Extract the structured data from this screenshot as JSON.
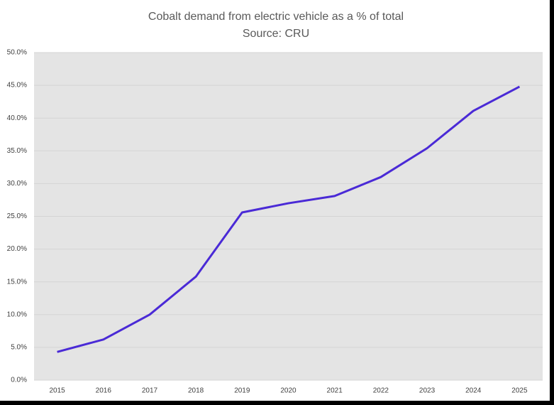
{
  "chart_data": {
    "type": "line",
    "title": "Cobalt demand from electric vehicle as a % of total",
    "subtitle": "Source: CRU",
    "categories": [
      "2015",
      "2016",
      "2017",
      "2018",
      "2019",
      "2020",
      "2021",
      "2022",
      "2023",
      "2024",
      "2025"
    ],
    "series": [
      {
        "color": "#4a2ad6",
        "values": [
          4.3,
          6.2,
          10.0,
          15.8,
          25.6,
          27.0,
          28.1,
          31.0,
          35.4,
          41.1,
          44.8
        ]
      }
    ],
    "ylim": [
      0,
      50
    ],
    "yticks": [
      {
        "value": 0,
        "label": "0.0%"
      },
      {
        "value": 5,
        "label": "5.0%"
      },
      {
        "value": 10,
        "label": "10.0%"
      },
      {
        "value": 15,
        "label": "15.0%"
      },
      {
        "value": 20,
        "label": "20.0%"
      },
      {
        "value": 25,
        "label": "25.0%"
      },
      {
        "value": 30,
        "label": "30.0%"
      },
      {
        "value": 35,
        "label": "35.0%"
      },
      {
        "value": 40,
        "label": "40.0%"
      },
      {
        "value": 45,
        "label": "45.0%"
      },
      {
        "value": 50,
        "label": "50.0%"
      }
    ],
    "grid": true
  }
}
